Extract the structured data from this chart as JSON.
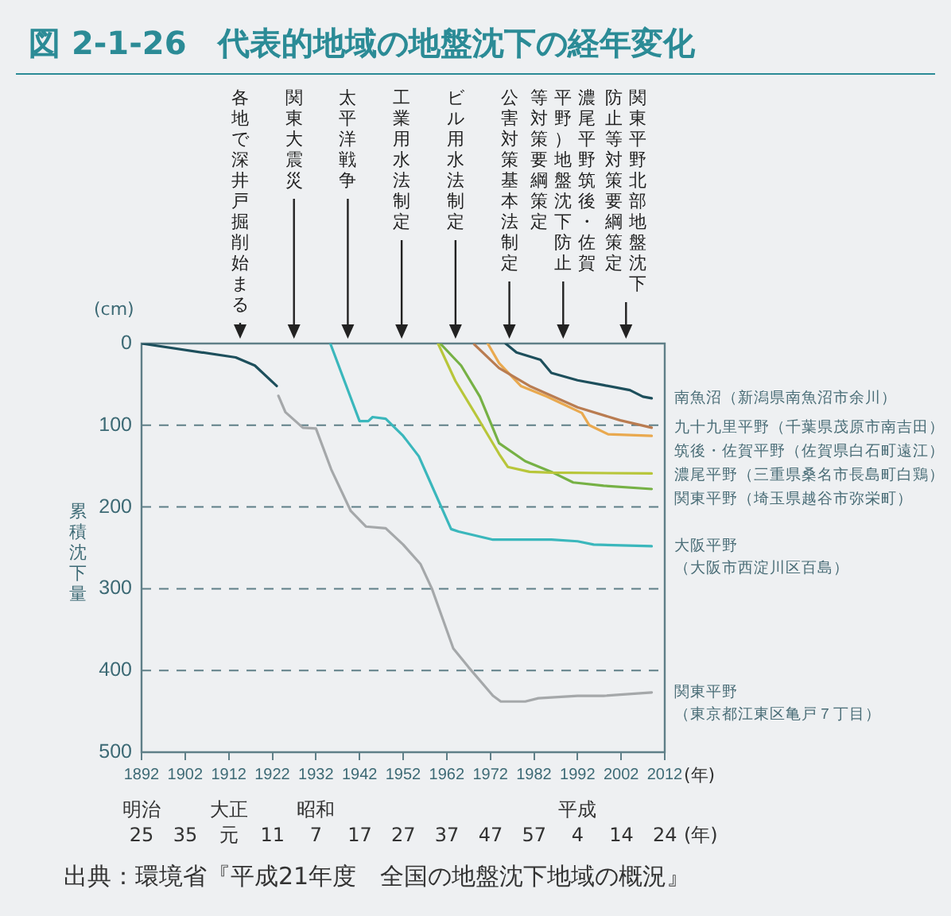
{
  "chart_data": {
    "type": "line",
    "title": "図 2-1-26　代表的地域の地盤沈下の経年変化",
    "xlabel": "(年)",
    "ylabel": "累積沈下量",
    "xlim": [
      1892,
      2012
    ],
    "xticks": [
      1892,
      1902,
      1912,
      1922,
      1932,
      1942,
      1952,
      1962,
      1972,
      1982,
      1992,
      2002,
      2012
    ],
    "ylim": [
      500,
      0
    ],
    "yticks": [
      0,
      100,
      200,
      300,
      400,
      500
    ],
    "grid": "y",
    "legend": false,
    "series": [
      {
        "name": "南魚沼（新潟県南魚沼市余川）",
        "color": "#1d4f5c",
        "x": [
          1975.5,
          1978,
          1983.5,
          1986,
          1992,
          1998,
          2004,
          2007,
          2009
        ],
        "values": [
          0,
          11,
          20,
          36,
          45,
          51,
          57,
          65,
          67
        ]
      },
      {
        "name": "九十九里平野（千葉県茂原市南吉田）",
        "color": "#b97c51",
        "x": [
          1968.3,
          1974,
          1981,
          1992,
          2001.8,
          2009
        ],
        "values": [
          1,
          30,
          52,
          78,
          94,
          103
        ]
      },
      {
        "name": "筑後・佐賀平野（佐賀県白石町遠江）",
        "color": "#e9a94f",
        "x": [
          1971.4,
          1974,
          1979,
          1985,
          1993,
          1994.7,
          1999,
          2009
        ],
        "values": [
          0,
          24,
          52,
          65,
          85,
          100,
          111,
          113
        ]
      },
      {
        "name": "濃尾平野（三重県桑名市長島町白鶏）",
        "color": "#b8c63a",
        "x": [
          1960,
          1964,
          1969,
          1974,
          1976,
          1981,
          1986,
          2009
        ],
        "values": [
          0,
          46,
          90,
          135,
          151,
          157,
          158,
          159
        ]
      },
      {
        "name": "関東平野（埼玉県越谷市弥栄町）",
        "color": "#76b145",
        "x": [
          1960.5,
          1965.3,
          1969.6,
          1974,
          1980,
          1986,
          1991,
          1998,
          2009
        ],
        "values": [
          0,
          27,
          65,
          122,
          144,
          157,
          170,
          174,
          178
        ]
      },
      {
        "name": "大阪平野（大阪市西淀川区百島）",
        "color": "#3ab7bc",
        "x": [
          1935.3,
          1942,
          1944,
          1945,
          1948,
          1952,
          1955.6,
          1959,
          1963,
          1964.7,
          1972.6,
          1986,
          1992,
          1995.7,
          2009
        ],
        "values": [
          0,
          95,
          95,
          90,
          92,
          113,
          138,
          179,
          227,
          230,
          240,
          240,
          242,
          246,
          248
        ]
      },
      {
        "name": "関東平野（東京都江東区亀戸７丁目）",
        "color": "#a5a8aa",
        "x": [
          1923.4,
          1925,
          1929,
          1932,
          1935.5,
          1940,
          1943.5,
          1948,
          1952,
          1956,
          1958.6,
          1963.5,
          1967,
          1972.6,
          1974.4,
          1980,
          1983,
          1992,
          1998,
          2009
        ],
        "values": [
          64,
          84,
          103,
          104,
          154,
          205,
          224,
          226,
          246,
          270,
          300,
          373,
          396,
          431,
          438,
          438,
          434,
          431,
          431,
          427
        ]
      },
      {
        "color": "#1d4f5c",
        "x": [
          1892,
          1913.6,
          1918,
          1923
        ],
        "values": [
          0,
          17,
          27,
          52
        ]
      }
    ],
    "annotations": [
      "(cm)",
      "出典：環境省『平成21年度　全国の地盤沈下地域の概況』",
      "各地で深井戸掘削始まる",
      "関東大震災",
      "太平洋戦争",
      "工業用水法制定",
      "ビル用水法制定",
      "公害対策基本法制定",
      "濃尾平野筑後・佐賀平野）地盤沈下防止等対策要綱策定",
      "関東平野北部地盤沈下防止等対策要綱策定",
      "明治25",
      "35",
      "大正元",
      "11",
      "昭和7",
      "17",
      "27",
      "37",
      "47",
      "57",
      "平成4",
      "14",
      "24",
      "(年)"
    ]
  }
}
